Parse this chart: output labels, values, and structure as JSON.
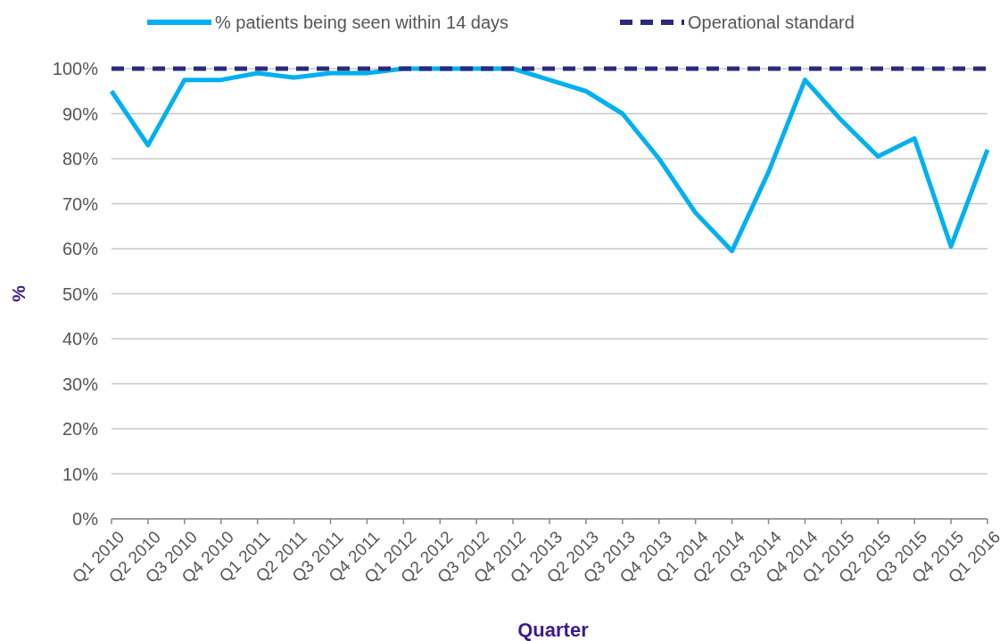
{
  "chart_data": {
    "type": "line",
    "xlabel": "Quarter",
    "ylabel": "%",
    "categories": [
      "Q1 2010",
      "Q2 2010",
      "Q3 2010",
      "Q4 2010",
      "Q1 2011",
      "Q2 2011",
      "Q3 2011",
      "Q4 2011",
      "Q1 2012",
      "Q2 2012",
      "Q3 2012",
      "Q4 2012",
      "Q1 2013",
      "Q2 2013",
      "Q3 2013",
      "Q4 2013",
      "Q1 2014",
      "Q2 2014",
      "Q3 2014",
      "Q4 2014",
      "Q1 2015",
      "Q2 2015",
      "Q3 2015",
      "Q4 2015",
      "Q1 2016"
    ],
    "series": [
      {
        "name": "% patients being seen within 14 days",
        "color": "#00b0f0",
        "line_style": "solid",
        "values": [
          95,
          83,
          97.5,
          97.5,
          99,
          98,
          99,
          99,
          100,
          100,
          100,
          100,
          97.5,
          95,
          90,
          80,
          68,
          59.5,
          77,
          97.5,
          88.5,
          80.5,
          84.5,
          60.5,
          82
        ]
      },
      {
        "name": "Operational standard",
        "color": "#2b2a7c",
        "line_style": "dashed",
        "values": [
          100,
          100,
          100,
          100,
          100,
          100,
          100,
          100,
          100,
          100,
          100,
          100,
          100,
          100,
          100,
          100,
          100,
          100,
          100,
          100,
          100,
          100,
          100,
          100,
          100
        ]
      }
    ],
    "ylim": [
      0,
      100
    ],
    "yticks": [
      {
        "value": 0,
        "label": "0%"
      },
      {
        "value": 10,
        "label": "10%"
      },
      {
        "value": 20,
        "label": "20%"
      },
      {
        "value": 30,
        "label": "30%"
      },
      {
        "value": 40,
        "label": "40%"
      },
      {
        "value": 50,
        "label": "50%"
      },
      {
        "value": 60,
        "label": "60%"
      },
      {
        "value": 70,
        "label": "70%"
      },
      {
        "value": 80,
        "label": "80%"
      },
      {
        "value": 90,
        "label": "90%"
      },
      {
        "value": 100,
        "label": "100%"
      }
    ],
    "grid": "y",
    "legend": "top",
    "marker": "none"
  }
}
